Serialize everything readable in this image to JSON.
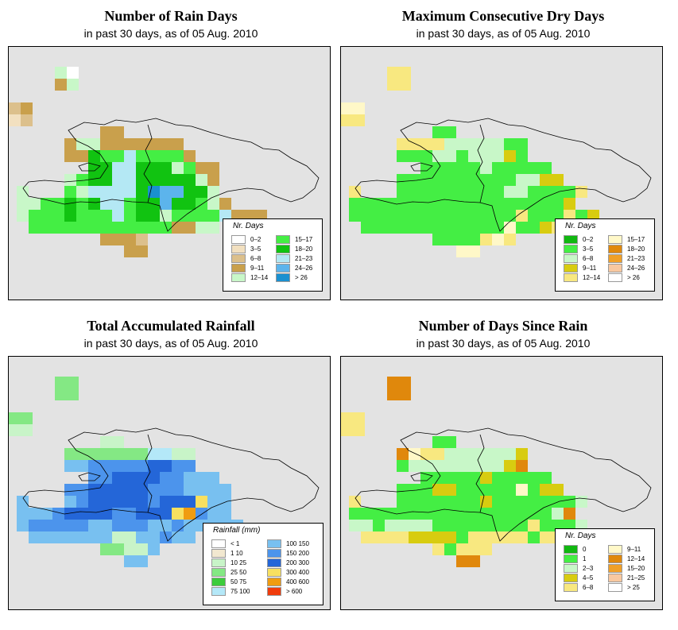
{
  "panels": [
    {
      "id": "rain-days",
      "title": "Number of Rain Days",
      "subtitle": "in past 30 days, as of  05 Aug. 2010",
      "legend_title": "Nr. Days",
      "legend": [
        {
          "label": "0–2",
          "color": "#ffffff"
        },
        {
          "label": "3–5",
          "color": "#f2e0c0"
        },
        {
          "label": "6–8",
          "color": "#dcc08c"
        },
        {
          "label": "9–11",
          "color": "#c9a04c"
        },
        {
          "label": "12–14",
          "color": "#c8f7c8"
        },
        {
          "label": "15–17",
          "color": "#44ee44"
        },
        {
          "label": "18–20",
          "color": "#11c311"
        },
        {
          "label": "21–23",
          "color": "#b4e8f4"
        },
        {
          "label": "24–26",
          "color": "#5cb4ec"
        },
        {
          "label": "> 26",
          "color": "#1a90d0"
        }
      ]
    },
    {
      "id": "dry-days",
      "title": "Maximum Consecutive Dry Days",
      "subtitle": "in past 30 days, as of  05 Aug. 2010",
      "legend_title": "Nr. Days",
      "legend": [
        {
          "label": "0–2",
          "color": "#11b811"
        },
        {
          "label": "3–5",
          "color": "#44ee44"
        },
        {
          "label": "6–8",
          "color": "#c8f7c8"
        },
        {
          "label": "9–11",
          "color": "#d8cc10"
        },
        {
          "label": "12–14",
          "color": "#f8e880"
        },
        {
          "label": "15–17",
          "color": "#fff8c8"
        },
        {
          "label": "18–20",
          "color": "#e0880c"
        },
        {
          "label": "21–23",
          "color": "#f0a028"
        },
        {
          "label": "24–26",
          "color": "#f8c8a0"
        },
        {
          "label": "> 26",
          "color": "#ffffff"
        }
      ]
    },
    {
      "id": "rainfall",
      "title": "Total Accumulated Rainfall",
      "subtitle": "in past 30 days, as of  05 Aug. 2010",
      "legend_title": "Rainfall (mm)",
      "legend": [
        {
          "label": "< 1",
          "color": "#ffffff"
        },
        {
          "label": "1   10",
          "color": "#f2e8d0"
        },
        {
          "label": "10   25",
          "color": "#c8f4c8"
        },
        {
          "label": "25   50",
          "color": "#84e884"
        },
        {
          "label": "50   75",
          "color": "#3ccc3c"
        },
        {
          "label": "75  100",
          "color": "#b4e8f8"
        },
        {
          "label": "100  150",
          "color": "#78c0f0"
        },
        {
          "label": "150  200",
          "color": "#4c94ec"
        },
        {
          "label": "200  300",
          "color": "#2466d8"
        },
        {
          "label": "300  400",
          "color": "#f8e060"
        },
        {
          "label": "400  600",
          "color": "#f09c10"
        },
        {
          "label": "> 600",
          "color": "#f03c0c"
        }
      ]
    },
    {
      "id": "since-rain",
      "title": "Number of Days Since Rain",
      "subtitle": "in past 30 days, as of  05 Aug. 2010",
      "legend_title": "Nr. Days",
      "legend": [
        {
          "label": "0",
          "color": "#11b811"
        },
        {
          "label": "1",
          "color": "#44ee44"
        },
        {
          "label": "2–3",
          "color": "#c8f7c8"
        },
        {
          "label": "4–5",
          "color": "#d8cc10"
        },
        {
          "label": "6–8",
          "color": "#f8e880"
        },
        {
          "label": "9–11",
          "color": "#fff8c8"
        },
        {
          "label": "12–14",
          "color": "#e0880c"
        },
        {
          "label": "15–20",
          "color": "#f0a028"
        },
        {
          "label": "21–25",
          "color": "#f8c8a0"
        },
        {
          "label": "> 25",
          "color": "#ffffff"
        }
      ]
    }
  ],
  "grids": {
    "rain-days": [
      "......................",
      "...40..................",
      "...34..................",
      "...................... ",
      "23.....................",
      "12.....................",
      ".......33..............",
      "....3443333333.........",
      "....33655755553........",
      "......66776664533......",
      "....4566776666643......",
      "4...5477776988664....",
      "445565677566866543....",
      "455565557566455557333..",
      ".5555555555553344......",
      ".......3332............",
      ".........33............",
      "........................"
    ],
    "dry-days": [
      "......................",
      "...44..................",
      "...44..................",
      "....................",
      "55.....................",
      "44.....................",
      ".......11..............",
      "....44442222211........",
      "....11122122231........",
      "......11111211111......",
      "....11111111112233.....",
      "4...1111111112211114..",
      "1111111111111111113...",
      "111111111111114111413..",
      ".11111111111151134.....",
      ".......1111454.........",
      ".........55............",
      "......................"
    ],
    "rainfall": [
      "......................",
      "...33..................",
      "...33..................",
      "......................",
      "33.....................",
      "22.....................",
      ".......22..............",
      "....33333335522........",
      "....66777778877........",
      "......77888877666......",
      "....77888887776666.....",
      "6...67888887888966.....",
      "66678888778889A766.....",
      "6777776677766766666....",
      ".66666662266766........",
      ".......33226...........",
      ".........66............",
      "......................"
    ],
    "since-rain": [
      "......................",
      "...66..................",
      "...66..................",
      "......................",
      "44.....................",
      "44.....................",
      ".......11..............",
      "....65442222223........",
      "....12222222236........",
      "......11111311111......",
      "....11133111115133.....",
      "4...1111111311111112...",
      "1111111111111111126....",
      "22122221111111141112...",
      ".44443333144444144.....",
      ".......41444...........",
      ".........66............",
      "......................"
    ]
  }
}
